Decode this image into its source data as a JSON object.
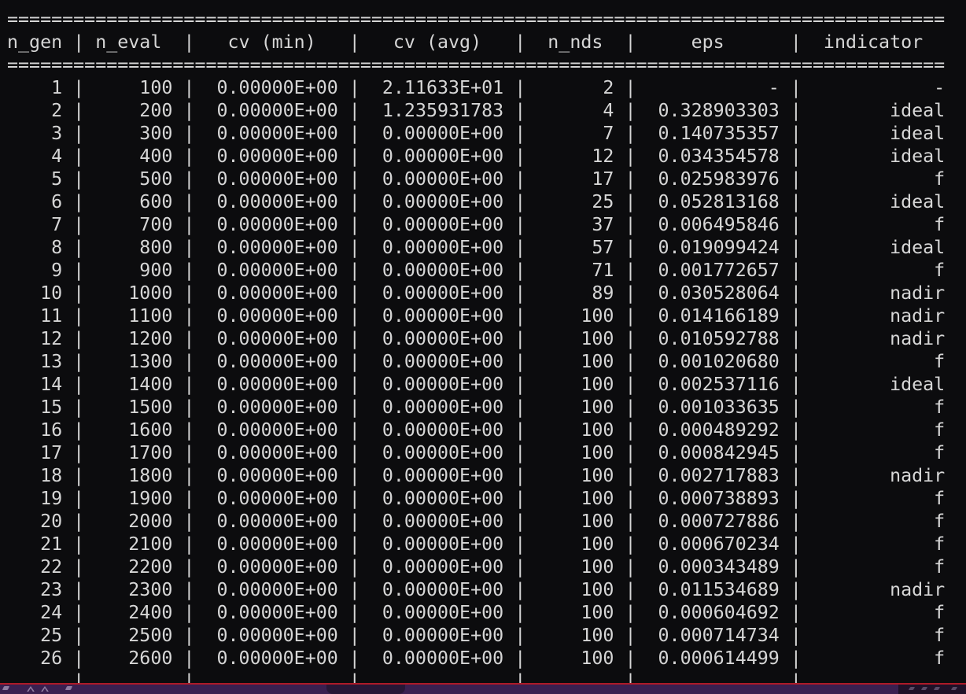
{
  "terminal": {
    "bg_color": "#0c0c0e",
    "fg_color": "#d6d6d6",
    "separator_char": "=",
    "line_chars": 85,
    "columns": [
      {
        "label": "n_gen",
        "width": 5
      },
      {
        "label": "n_eval",
        "width": 7
      },
      {
        "label": "cv (min)",
        "width": 12
      },
      {
        "label": "cv (avg)",
        "width": 12
      },
      {
        "label": "n_nds",
        "width": 7
      },
      {
        "label": "eps",
        "width": 12
      },
      {
        "label": "indicator",
        "width": 12
      }
    ],
    "rows": [
      [
        "1",
        "100",
        "0.00000E+00",
        "2.11633E+01",
        "2",
        "-",
        "-"
      ],
      [
        "2",
        "200",
        "0.00000E+00",
        "1.235931783",
        "4",
        "0.328903303",
        "ideal"
      ],
      [
        "3",
        "300",
        "0.00000E+00",
        "0.00000E+00",
        "7",
        "0.140735357",
        "ideal"
      ],
      [
        "4",
        "400",
        "0.00000E+00",
        "0.00000E+00",
        "12",
        "0.034354578",
        "ideal"
      ],
      [
        "5",
        "500",
        "0.00000E+00",
        "0.00000E+00",
        "17",
        "0.025983976",
        "f"
      ],
      [
        "6",
        "600",
        "0.00000E+00",
        "0.00000E+00",
        "25",
        "0.052813168",
        "ideal"
      ],
      [
        "7",
        "700",
        "0.00000E+00",
        "0.00000E+00",
        "37",
        "0.006495846",
        "f"
      ],
      [
        "8",
        "800",
        "0.00000E+00",
        "0.00000E+00",
        "57",
        "0.019099424",
        "ideal"
      ],
      [
        "9",
        "900",
        "0.00000E+00",
        "0.00000E+00",
        "71",
        "0.001772657",
        "f"
      ],
      [
        "10",
        "1000",
        "0.00000E+00",
        "0.00000E+00",
        "89",
        "0.030528064",
        "nadir"
      ],
      [
        "11",
        "1100",
        "0.00000E+00",
        "0.00000E+00",
        "100",
        "0.014166189",
        "nadir"
      ],
      [
        "12",
        "1200",
        "0.00000E+00",
        "0.00000E+00",
        "100",
        "0.010592788",
        "nadir"
      ],
      [
        "13",
        "1300",
        "0.00000E+00",
        "0.00000E+00",
        "100",
        "0.001020680",
        "f"
      ],
      [
        "14",
        "1400",
        "0.00000E+00",
        "0.00000E+00",
        "100",
        "0.002537116",
        "ideal"
      ],
      [
        "15",
        "1500",
        "0.00000E+00",
        "0.00000E+00",
        "100",
        "0.001033635",
        "f"
      ],
      [
        "16",
        "1600",
        "0.00000E+00",
        "0.00000E+00",
        "100",
        "0.000489292",
        "f"
      ],
      [
        "17",
        "1700",
        "0.00000E+00",
        "0.00000E+00",
        "100",
        "0.000842945",
        "f"
      ],
      [
        "18",
        "1800",
        "0.00000E+00",
        "0.00000E+00",
        "100",
        "0.002717883",
        "nadir"
      ],
      [
        "19",
        "1900",
        "0.00000E+00",
        "0.00000E+00",
        "100",
        "0.000738893",
        "f"
      ],
      [
        "20",
        "2000",
        "0.00000E+00",
        "0.00000E+00",
        "100",
        "0.000727886",
        "f"
      ],
      [
        "21",
        "2100",
        "0.00000E+00",
        "0.00000E+00",
        "100",
        "0.000670234",
        "f"
      ],
      [
        "22",
        "2200",
        "0.00000E+00",
        "0.00000E+00",
        "100",
        "0.000343489",
        "f"
      ],
      [
        "23",
        "2300",
        "0.00000E+00",
        "0.00000E+00",
        "100",
        "0.011534689",
        "nadir"
      ],
      [
        "24",
        "2400",
        "0.00000E+00",
        "0.00000E+00",
        "100",
        "0.000604692",
        "f"
      ],
      [
        "25",
        "2500",
        "0.00000E+00",
        "0.00000E+00",
        "100",
        "0.000714734",
        "f"
      ],
      [
        "26",
        "2600",
        "0.00000E+00",
        "0.00000E+00",
        "100",
        "0.000614499",
        "f"
      ]
    ],
    "partial_row": [
      "",
      "",
      "",
      "",
      "",
      "",
      ""
    ]
  },
  "status_bar": {
    "accent_line_color": "#ae1a28",
    "bar_color": "#3a2050",
    "notch_color": "#241631",
    "right_segment_color": "#1f1128",
    "fragment_color": "#8f7ba0",
    "right_fragment_color": "#5a4a66"
  }
}
